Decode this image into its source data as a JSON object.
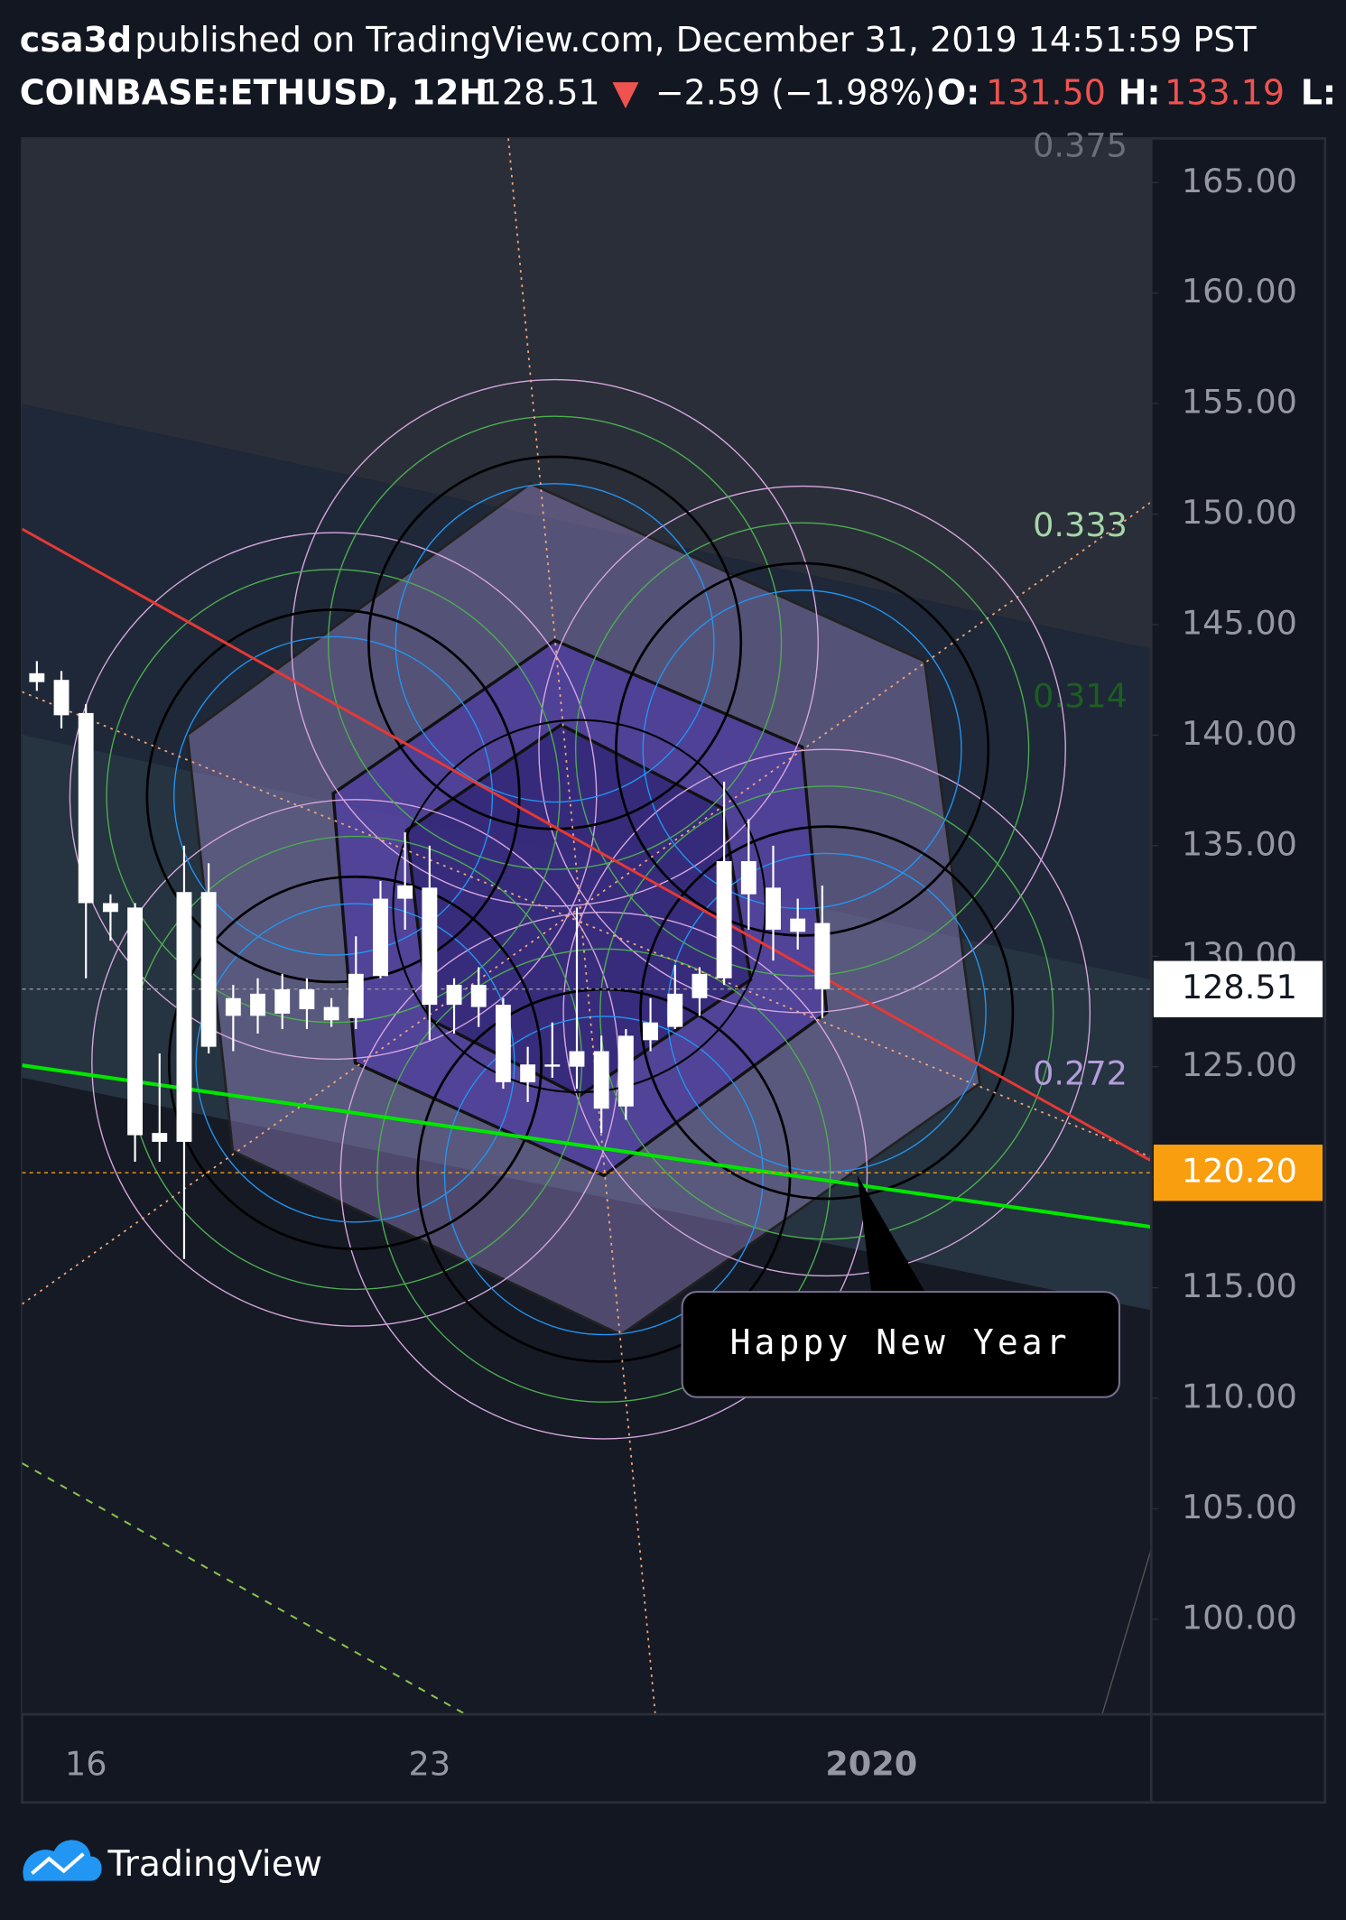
{
  "header": {
    "publisher": "csa3d",
    "published_text": "published on TradingView.com, December 31, 2019 14:51:59 PST",
    "symbol": "COINBASE:ETHUSD, 12H",
    "last": "128.51",
    "change_arrow": "▼",
    "change": "−2.59 (−1.98%)",
    "open_label": "O:",
    "open": "131.50",
    "high_label": "H:",
    "high": "133.19",
    "low_label": "L:"
  },
  "brand": "TradingView",
  "chart_data": {
    "type": "candlestick",
    "categories": [
      null,
      null,
      "16",
      null,
      null,
      null,
      null,
      null,
      null,
      null,
      null,
      null,
      null,
      null,
      null,
      null,
      "23",
      null,
      null,
      null,
      null,
      null,
      null,
      null,
      null,
      null,
      null,
      null,
      null,
      null,
      null,
      null,
      null,
      null,
      "2020",
      null,
      null,
      null,
      null,
      null,
      null,
      null,
      null,
      null,
      null,
      null
    ],
    "open": [
      142.8,
      142.5,
      141.0,
      132.4,
      132.2,
      122.0,
      121.6,
      132.9,
      127.3,
      127.3,
      128.5,
      128.5,
      127.7,
      127.2,
      129.1,
      132.6,
      133.1,
      127.8,
      128.7,
      127.8,
      124.3,
      125.1,
      125.0,
      125.7,
      123.2,
      126.2,
      126.8,
      128.1,
      129.0,
      134.3,
      133.1,
      131.7,
      131.5,
      null,
      null,
      null,
      null,
      null,
      null,
      null,
      null,
      null,
      null,
      null,
      null,
      null
    ],
    "high": [
      143.35,
      142.9,
      141.4,
      132.8,
      132.4,
      125.6,
      135.0,
      134.2,
      128.7,
      129.0,
      129.2,
      129.0,
      128.1,
      130.9,
      133.4,
      135.6,
      135.0,
      129.0,
      129.5,
      128.1,
      125.9,
      127.0,
      132.2,
      126.4,
      126.7,
      128.1,
      129.6,
      129.5,
      137.9,
      136.2,
      135.0,
      132.6,
      133.19,
      null,
      null,
      null,
      null,
      null,
      null,
      null,
      null,
      null,
      null,
      null,
      null,
      null
    ],
    "low": [
      142.0,
      140.3,
      129.0,
      130.7,
      120.7,
      120.7,
      116.3,
      125.6,
      125.7,
      126.5,
      126.7,
      126.7,
      126.8,
      126.7,
      129.0,
      131.2,
      126.2,
      126.5,
      126.8,
      124.0,
      123.4,
      124.5,
      124.0,
      122.0,
      122.6,
      125.7,
      126.7,
      127.3,
      128.7,
      131.2,
      129.8,
      130.3,
      127.2,
      null,
      null,
      null,
      null,
      null,
      null,
      null,
      null,
      null,
      null,
      null,
      null,
      null
    ],
    "close": [
      142.4,
      140.9,
      132.4,
      132.0,
      121.9,
      121.6,
      132.9,
      125.9,
      128.1,
      128.3,
      127.4,
      127.6,
      127.1,
      129.2,
      132.6,
      133.2,
      127.8,
      128.7,
      127.7,
      124.3,
      125.1,
      125.0,
      125.7,
      123.1,
      126.4,
      127.0,
      128.3,
      129.2,
      134.3,
      132.8,
      131.2,
      131.1,
      128.51,
      null,
      null,
      null,
      null,
      null,
      null,
      null,
      null,
      null,
      null,
      null,
      null,
      null
    ],
    "color": "#ffffff",
    "ylim": [
      95.7,
      167
    ],
    "yticks": [
      {
        "value": 100,
        "label": "100.00"
      },
      {
        "value": 105,
        "label": "105.00"
      },
      {
        "value": 110,
        "label": "110.00"
      },
      {
        "value": 115,
        "label": "115.00"
      },
      {
        "value": 120,
        "label": "120.00"
      },
      {
        "value": 125,
        "label": "125.00"
      },
      {
        "value": 130,
        "label": "130.00"
      },
      {
        "value": 135,
        "label": "135.00"
      },
      {
        "value": 140,
        "label": "140.00"
      },
      {
        "value": 145,
        "label": "145.00"
      },
      {
        "value": 150,
        "label": "150.00"
      },
      {
        "value": 155,
        "label": "155.00"
      },
      {
        "value": 160,
        "label": "160.00"
      },
      {
        "value": 165,
        "label": "165.00"
      }
    ],
    "price_labels": [
      {
        "value": 128.51,
        "label": "128.51",
        "color": "#ffffff"
      },
      {
        "value": 120.2,
        "label": "120.20",
        "color": "#f89e0f"
      }
    ],
    "annotations": [
      "0.375",
      "0.333",
      "0.314",
      "0.272",
      "Happy New Year"
    ]
  }
}
